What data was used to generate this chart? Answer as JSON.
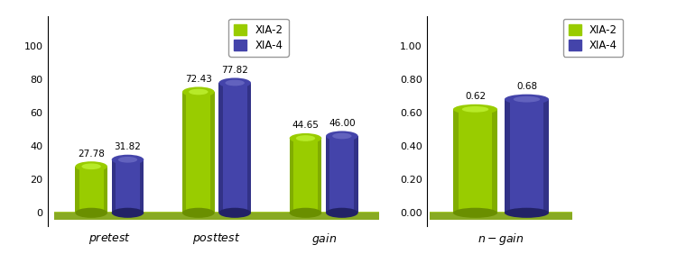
{
  "chart1": {
    "categories": [
      "pretest",
      "posttest",
      "gain"
    ],
    "xia2_values": [
      27.78,
      72.43,
      44.65
    ],
    "xia4_values": [
      31.82,
      77.82,
      46.0
    ],
    "xia2_labels": [
      "27.78",
      "72.43",
      "44.65"
    ],
    "xia4_labels": [
      "31.82",
      "77.82",
      "46.00"
    ],
    "ylim": [
      0,
      100
    ],
    "yticks": [
      0,
      20,
      40,
      60,
      80,
      100
    ],
    "color_xia2": "#99CC00",
    "color_xia2_dark": "#6A8F00",
    "color_xia2_light": "#CCFF44",
    "color_xia4": "#4444AA",
    "color_xia4_dark": "#222266",
    "color_xia4_light": "#7777CC",
    "floor_color": "#88AA22",
    "legend_labels": [
      "XIA-2",
      "XIA-4"
    ]
  },
  "chart2": {
    "categories": [
      "n-gain"
    ],
    "xia2_values": [
      0.62
    ],
    "xia4_values": [
      0.68
    ],
    "xia2_labels": [
      "0.62"
    ],
    "xia4_labels": [
      "0.68"
    ],
    "ylim": [
      0,
      1.0
    ],
    "yticks": [
      0.0,
      0.2,
      0.4,
      0.6,
      0.8,
      1.0
    ],
    "color_xia2": "#99CC00",
    "color_xia2_dark": "#6A8F00",
    "color_xia2_light": "#CCFF44",
    "color_xia4": "#4444AA",
    "color_xia4_dark": "#222266",
    "color_xia4_light": "#7777CC",
    "floor_color": "#88AA22",
    "legend_labels": [
      "XIA-2",
      "XIA-4"
    ]
  }
}
